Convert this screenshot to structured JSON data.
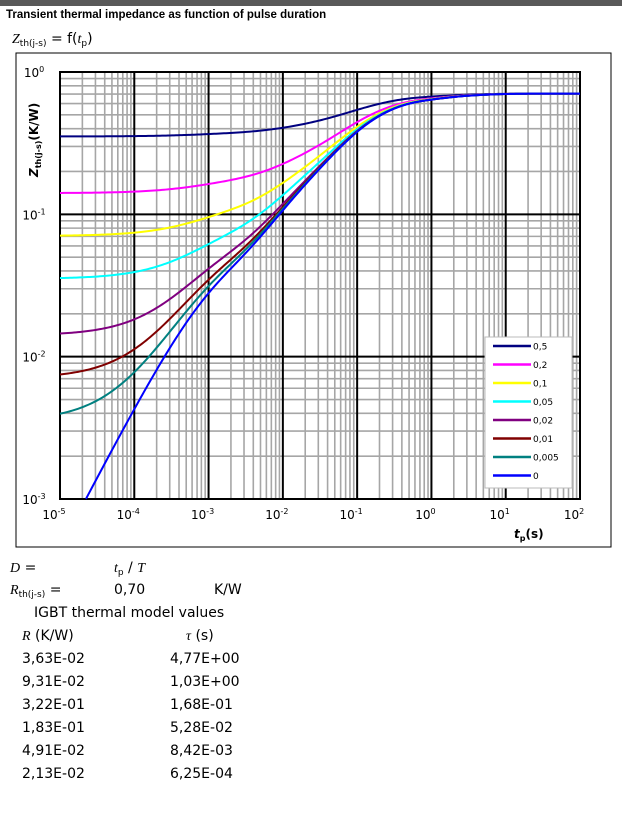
{
  "header": {
    "title": "Transient thermal impedance as function of pulse duration"
  },
  "formula": {
    "lhs": "Z",
    "lhs_sub": "th(j-s)",
    "eq": " = f(",
    "arg": "t",
    "arg_sub": "p",
    "close": ")"
  },
  "chart_data": {
    "type": "line",
    "x_scale": "log",
    "y_scale": "log",
    "xlim": [
      1e-05,
      100
    ],
    "ylim": [
      0.001,
      1
    ],
    "xlabel": "t",
    "xlabel_sub": "p",
    "xlabel_unit": "(s)",
    "ylabel": "Z",
    "ylabel_sub": "th(j-s)",
    "ylabel_unit": "(K/W)",
    "x_ticks": [
      {
        "base": "10",
        "exp": "-5"
      },
      {
        "base": "10",
        "exp": "-4"
      },
      {
        "base": "10",
        "exp": "-3"
      },
      {
        "base": "10",
        "exp": "-2"
      },
      {
        "base": "10",
        "exp": "-1"
      },
      {
        "base": "10",
        "exp": "0"
      },
      {
        "base": "10",
        "exp": "1"
      },
      {
        "base": "10",
        "exp": "2"
      }
    ],
    "y_ticks": [
      {
        "base": "10",
        "exp": "0"
      },
      {
        "base": "10",
        "exp": "-1"
      },
      {
        "base": "10",
        "exp": "-2"
      },
      {
        "base": "10",
        "exp": "-3"
      }
    ],
    "grid": true,
    "legend_position": "right",
    "series": [
      {
        "name": "0,5",
        "duty": 0.5,
        "color": "#000080"
      },
      {
        "name": "0,2",
        "duty": 0.2,
        "color": "#ff00ff"
      },
      {
        "name": "0,1",
        "duty": 0.1,
        "color": "#ffff00"
      },
      {
        "name": "0,05",
        "duty": 0.05,
        "color": "#00ffff"
      },
      {
        "name": "0,02",
        "duty": 0.02,
        "color": "#800080"
      },
      {
        "name": "0,01",
        "duty": 0.01,
        "color": "#800000"
      },
      {
        "name": "0,005",
        "duty": 0.005,
        "color": "#008080"
      },
      {
        "name": "0",
        "duty": 0,
        "color": "#0000ff"
      }
    ]
  },
  "params": {
    "d_label": "D",
    "d_eq": " =",
    "d_formula_t": "t",
    "d_formula_sub": "p",
    "d_formula_rest": " / ",
    "d_formula_T": "T",
    "r_label": "R",
    "r_sub": "th(j-s)",
    "r_eq": " =",
    "r_value": "0,70",
    "r_unit": "K/W"
  },
  "model": {
    "title": "IGBT thermal model values",
    "col_r_sym": "R",
    "col_r_unit": " (K/W)",
    "col_tau_sym": "τ",
    "col_tau_unit": " (s)",
    "rows": [
      {
        "r": "3,63E-02",
        "tau": "4,77E+00"
      },
      {
        "r": "9,31E-02",
        "tau": "1,03E+00"
      },
      {
        "r": "3,22E-01",
        "tau": "1,68E-01"
      },
      {
        "r": "1,83E-01",
        "tau": "5,28E-02"
      },
      {
        "r": "4,91E-02",
        "tau": "8,42E-03"
      },
      {
        "r": "2,13E-02",
        "tau": "6,25E-04"
      }
    ]
  }
}
